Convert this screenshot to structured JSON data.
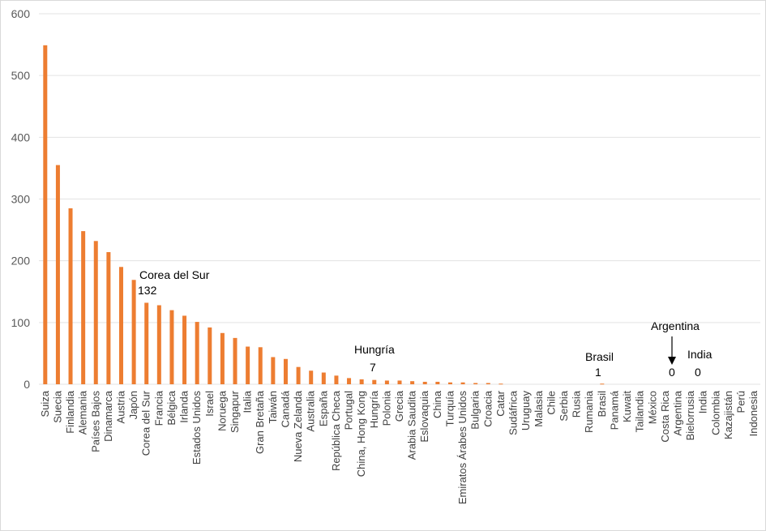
{
  "chart_data": {
    "type": "bar",
    "bar_color": "#ED7D31",
    "grid": true,
    "ylim": [
      0,
      600
    ],
    "yticks": [
      "0",
      "100",
      "200",
      "300",
      "400",
      "500",
      "600"
    ],
    "categories": [
      "Suiza",
      "Suecia",
      "Finlandia",
      "Alemania",
      "Países Bajos",
      "Dinamarca",
      "Austria",
      "Japón",
      "Corea del Sur",
      "Francia",
      "Bélgica",
      "Irlanda",
      "Estados Unidos",
      "Israel",
      "Noruega",
      "Singapur",
      "Italia",
      "Gran Bretaña",
      "Taiwán",
      "Canadá",
      "Nueva Zelanda",
      "Australia",
      "España",
      "República Checa",
      "Portugal",
      "China, Hong Kong",
      "Hungría",
      "Polonia",
      "Grecia",
      "Arabia Saudita",
      "Eslovaquia",
      "China",
      "Turquía",
      "Emiratos Árabes Unidos",
      "Bulgaria",
      "Croacia",
      "Catar",
      "Sudáfrica",
      "Uruguay",
      "Malasia",
      "Chile",
      "Serbia",
      "Rusia",
      "Rumania",
      "Brasil",
      "Panamá",
      "Kuwait",
      "Tailandia",
      "México",
      "Costa Rica",
      "Argentina",
      "Bielorrusia",
      "India",
      "Colombia",
      "Kazajistán",
      "Perú",
      "Indonesia"
    ],
    "values": [
      549,
      355,
      285,
      248,
      232,
      214,
      190,
      169,
      132,
      128,
      120,
      111,
      101,
      92,
      83,
      75,
      61,
      60,
      44,
      41,
      28,
      22,
      19,
      14,
      10,
      8,
      7,
      6,
      6,
      5,
      4,
      4,
      3,
      3,
      2,
      2,
      1,
      0,
      0,
      0,
      0,
      0,
      0,
      0,
      1,
      0,
      0,
      0,
      0,
      0,
      0,
      0,
      0,
      0,
      0,
      0,
      0
    ]
  },
  "annotations": {
    "corea": {
      "label": "Corea del Sur",
      "value": "132"
    },
    "hungria": {
      "label": "Hungría",
      "value": "7"
    },
    "brasil": {
      "label": "Brasil",
      "value": "1"
    },
    "argentina": {
      "label": "Argentina",
      "value": "0"
    },
    "india": {
      "label": "India",
      "value": "0"
    }
  }
}
